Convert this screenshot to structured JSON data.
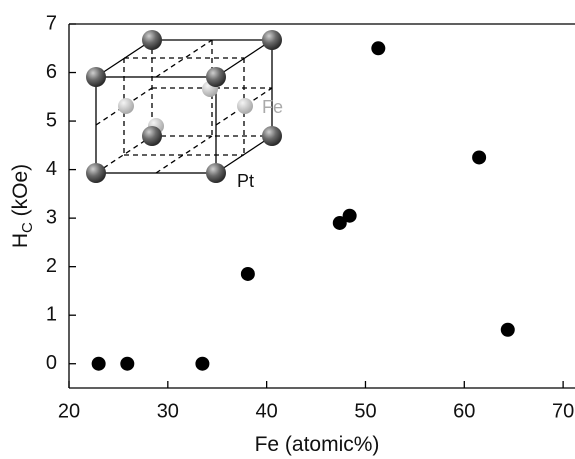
{
  "chart_data": {
    "type": "scatter",
    "xlabel": "Fe (atomic%)",
    "ylabel": {
      "main": "H",
      "sub": "C",
      "unit": " (kOe)"
    },
    "x": [
      23,
      25.9,
      33.5,
      38.1,
      47.4,
      48.4,
      51.3,
      61.5,
      64.4
    ],
    "values": [
      0,
      0,
      0,
      1.85,
      2.9,
      3.05,
      6.5,
      4.25,
      0.7
    ],
    "color": "#000000",
    "xlim": [
      20,
      71
    ],
    "xticks": [
      20,
      30,
      40,
      50,
      60,
      70
    ],
    "ylim": [
      -0.5,
      7
    ],
    "yticks": [
      0,
      1,
      2,
      3,
      4,
      5,
      6,
      7
    ],
    "annotations": [
      "Fe",
      "Pt"
    ]
  }
}
